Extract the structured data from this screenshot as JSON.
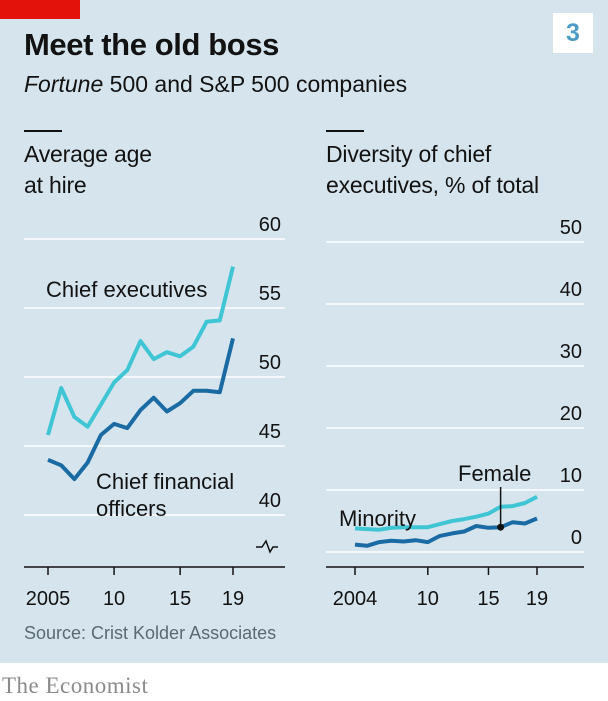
{
  "header": {
    "badge": "3",
    "title": "Meet the old boss",
    "subtitle_italic": "Fortune",
    "subtitle_rest": " 500 and S&P 500 companies"
  },
  "colors": {
    "light_series": "#40c5d5",
    "dark_series": "#1a6aa3",
    "background": "#d6e5ed",
    "grid": "#ffffff",
    "brand_red": "#e3120b"
  },
  "source": "Source: Crist Kolder Associates",
  "brand": "The Economist",
  "chart_data": [
    {
      "type": "line",
      "title_lines": [
        "Average age",
        "at hire"
      ],
      "xlim": [
        2005,
        2019
      ],
      "ylim": [
        40,
        60
      ],
      "yticks": [
        40,
        45,
        50,
        55,
        60
      ],
      "xtick_labels": [
        {
          "x": 2005,
          "label": "2005"
        },
        {
          "x": 2010,
          "label": "10"
        },
        {
          "x": 2015,
          "label": "15"
        },
        {
          "x": 2019,
          "label": "19"
        }
      ],
      "axis_break": true,
      "series": [
        {
          "name": "Chief executives",
          "color_key": "light_series",
          "x": [
            2005,
            2006,
            2007,
            2008,
            2009,
            2010,
            2011,
            2012,
            2013,
            2014,
            2015,
            2016,
            2017,
            2018,
            2019
          ],
          "y": [
            45.8,
            49.2,
            47.1,
            46.4,
            48.0,
            49.6,
            50.5,
            52.6,
            51.3,
            51.8,
            51.5,
            52.2,
            54.0,
            54.1,
            58.0
          ]
        },
        {
          "name": "Chief financial officers",
          "name_lines": [
            "Chief financial",
            "officers"
          ],
          "color_key": "dark_series",
          "x": [
            2005,
            2006,
            2007,
            2008,
            2009,
            2010,
            2011,
            2012,
            2013,
            2014,
            2015,
            2016,
            2017,
            2018,
            2019
          ],
          "y": [
            44.0,
            43.6,
            42.6,
            43.8,
            45.8,
            46.6,
            46.3,
            47.6,
            48.5,
            47.5,
            48.1,
            49.0,
            49.0,
            48.9,
            52.8
          ]
        }
      ]
    },
    {
      "type": "line",
      "title_lines": [
        "Diversity of chief",
        "executives, % of total"
      ],
      "xlim": [
        2004,
        2019
      ],
      "ylim": [
        0,
        50
      ],
      "yticks": [
        0,
        10,
        20,
        30,
        40,
        50
      ],
      "xtick_labels": [
        {
          "x": 2004,
          "label": "2004"
        },
        {
          "x": 2010,
          "label": "10"
        },
        {
          "x": 2015,
          "label": "15"
        },
        {
          "x": 2019,
          "label": "19"
        }
      ],
      "series": [
        {
          "name": "Minority",
          "color_key": "light_series",
          "x": [
            2004,
            2005,
            2006,
            2007,
            2008,
            2009,
            2010,
            2011,
            2012,
            2013,
            2014,
            2015,
            2016,
            2017,
            2018,
            2019
          ],
          "y": [
            3.8,
            3.7,
            3.6,
            3.9,
            4.0,
            4.0,
            4.0,
            4.5,
            5.0,
            5.3,
            5.7,
            6.2,
            7.3,
            7.4,
            7.9,
            8.9
          ]
        },
        {
          "name": "Female",
          "color_key": "dark_series",
          "x": [
            2004,
            2005,
            2006,
            2007,
            2008,
            2009,
            2010,
            2011,
            2012,
            2013,
            2014,
            2015,
            2016,
            2017,
            2018,
            2019
          ],
          "y": [
            1.2,
            1.0,
            1.6,
            1.8,
            1.7,
            1.9,
            1.6,
            2.6,
            3.0,
            3.3,
            4.2,
            3.9,
            4.0,
            4.8,
            4.6,
            5.4
          ]
        }
      ]
    }
  ]
}
